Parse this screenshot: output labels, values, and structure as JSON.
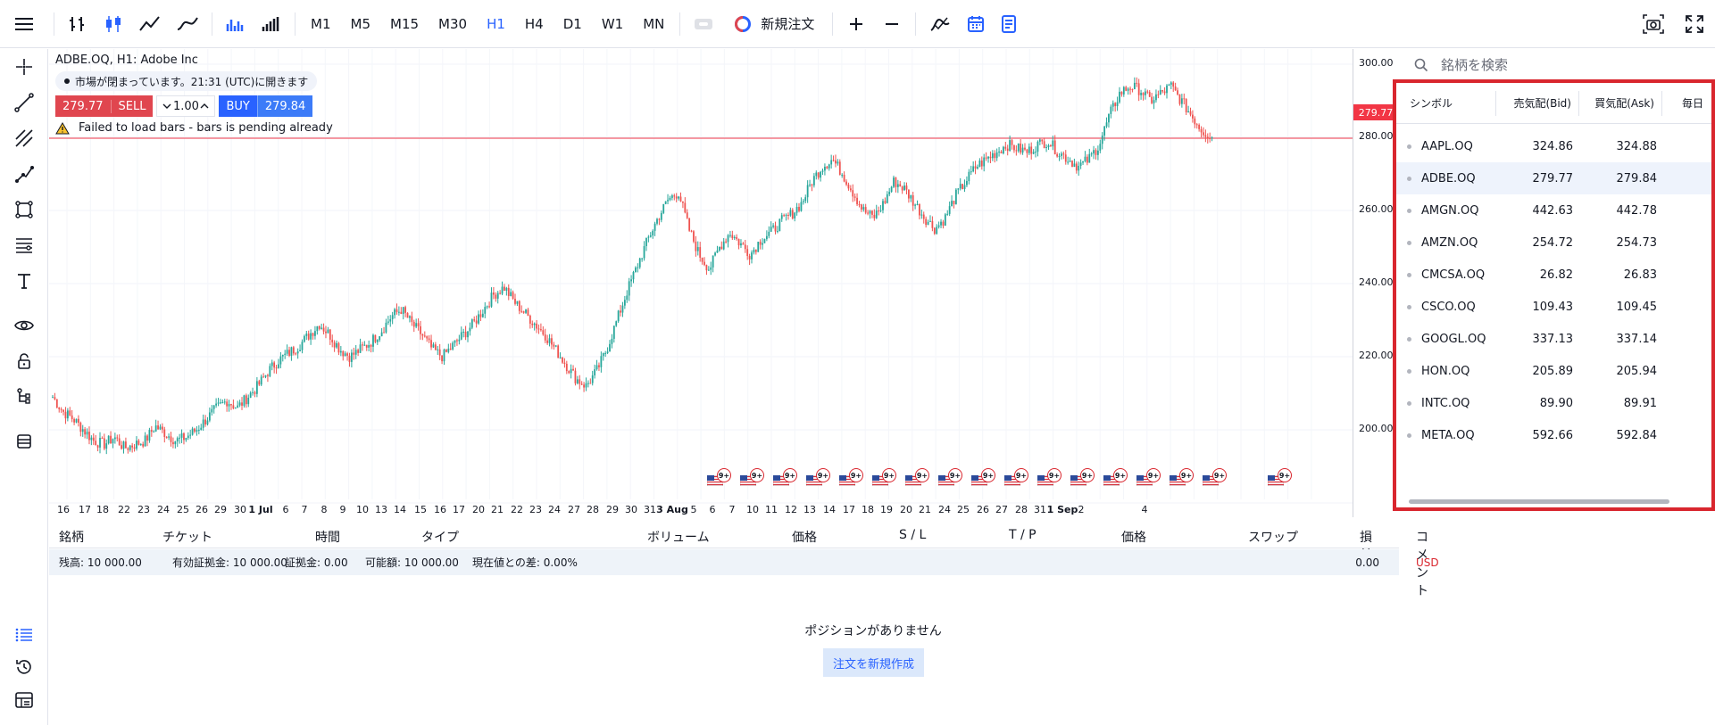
{
  "toolbar": {
    "timeframes": [
      "M1",
      "M5",
      "M15",
      "M30",
      "H1",
      "H4",
      "D1",
      "W1",
      "MN"
    ],
    "active_timeframe": "H1",
    "new_order_label": "新規注文"
  },
  "chart": {
    "legend": "ADBE.OQ, H1: Adobe Inc",
    "market_status": "市場が閉まっています。21:31 (UTC)に開きます",
    "sell_price": "279.77",
    "sell_label": "SELL",
    "quantity": "1.00",
    "buy_label": "BUY",
    "buy_price": "279.84",
    "warning": "Failed to load bars - bars is pending already",
    "current_price_label": "279.77",
    "price_axis": [
      "300.00",
      "280.00",
      "260.00",
      "240.00",
      "220.00",
      "200.00"
    ],
    "time_axis": [
      "16",
      "17",
      "18",
      "22",
      "23",
      "24",
      "25",
      "26",
      "29",
      "30",
      "1 Jul",
      "6",
      "7",
      "8",
      "9",
      "10",
      "13",
      "14",
      "15",
      "16",
      "17",
      "20",
      "21",
      "22",
      "23",
      "24",
      "27",
      "28",
      "29",
      "30",
      "31",
      "3 Aug",
      "5",
      "6",
      "7",
      "10",
      "11",
      "12",
      "13",
      "14",
      "17",
      "18",
      "19",
      "20",
      "21",
      "24",
      "25",
      "26",
      "27",
      "28",
      "31",
      "1 Sep",
      "2",
      "4"
    ],
    "event_badge": "9+"
  },
  "chart_data": {
    "type": "candlestick",
    "symbol": "ADBE.OQ",
    "y_ticks": [
      300,
      280,
      260,
      240,
      220,
      200
    ],
    "price_line": 279.77,
    "close_path": [
      209,
      205,
      203,
      200,
      197,
      196,
      198,
      195,
      196,
      197,
      201,
      199,
      197,
      198,
      200,
      203,
      206,
      208,
      206,
      209,
      212,
      216,
      219,
      221,
      223,
      226,
      229,
      226,
      222,
      220,
      222,
      224,
      227,
      231,
      233,
      229,
      226,
      222,
      220,
      223,
      226,
      229,
      233,
      237,
      239,
      235,
      232,
      229,
      226,
      222,
      218,
      214,
      212,
      216,
      222,
      230,
      238,
      245,
      252,
      258,
      263,
      265,
      255,
      248,
      244,
      250,
      254,
      251,
      248,
      252,
      254,
      257,
      259,
      262,
      268,
      272,
      274,
      270,
      265,
      260,
      258,
      262,
      268,
      266,
      262,
      258,
      255,
      258,
      264,
      268,
      272,
      274,
      276,
      278,
      277,
      276,
      278,
      279,
      276,
      274,
      272,
      274,
      278,
      286,
      292,
      294,
      293,
      290,
      292,
      294,
      290,
      286,
      282,
      280
    ]
  },
  "market_watch": {
    "search_placeholder": "銘柄を検索",
    "columns": [
      "シンボル",
      "売気配(Bid)",
      "買気配(Ask)",
      "毎日"
    ],
    "rows": [
      {
        "symbol": "AAPL.OQ",
        "bid": "324.86",
        "ask": "324.88"
      },
      {
        "symbol": "ADBE.OQ",
        "bid": "279.77",
        "ask": "279.84"
      },
      {
        "symbol": "AMGN.OQ",
        "bid": "442.63",
        "ask": "442.78"
      },
      {
        "symbol": "AMZN.OQ",
        "bid": "254.72",
        "ask": "254.73"
      },
      {
        "symbol": "CMCSA.OQ",
        "bid": "26.82",
        "ask": "26.83"
      },
      {
        "symbol": "CSCO.OQ",
        "bid": "109.43",
        "ask": "109.45"
      },
      {
        "symbol": "GOOGL.OQ",
        "bid": "337.13",
        "ask": "337.14"
      },
      {
        "symbol": "HON.OQ",
        "bid": "205.89",
        "ask": "205.94"
      },
      {
        "symbol": "INTC.OQ",
        "bid": "89.90",
        "ask": "89.91"
      },
      {
        "symbol": "META.OQ",
        "bid": "592.66",
        "ask": "592.84"
      }
    ],
    "selected_symbol": "ADBE.OQ"
  },
  "positions": {
    "columns": [
      "銘柄",
      "チケット",
      "時間",
      "タイプ",
      "ボリューム",
      "価格",
      "S / L",
      "T / P",
      "価格",
      "スワップ",
      "損益",
      "コメント"
    ],
    "account": {
      "balance": "残高: 10 000.00",
      "equity": "有効証拠金: 10 000.00",
      "margin": "証拠金: 0.00",
      "free": "可能額: 10 000.00",
      "diff": "現在値との差: 0.00%",
      "profit": "0.00",
      "currency": "USD"
    },
    "empty_message": "ポジションがありません",
    "create_order_label": "注文を新規作成"
  },
  "colors": {
    "accent": "#2962ff",
    "up": "#26a69a",
    "down": "#ef5350",
    "sell": "#e0464f",
    "highlight_border": "#d9262e"
  }
}
